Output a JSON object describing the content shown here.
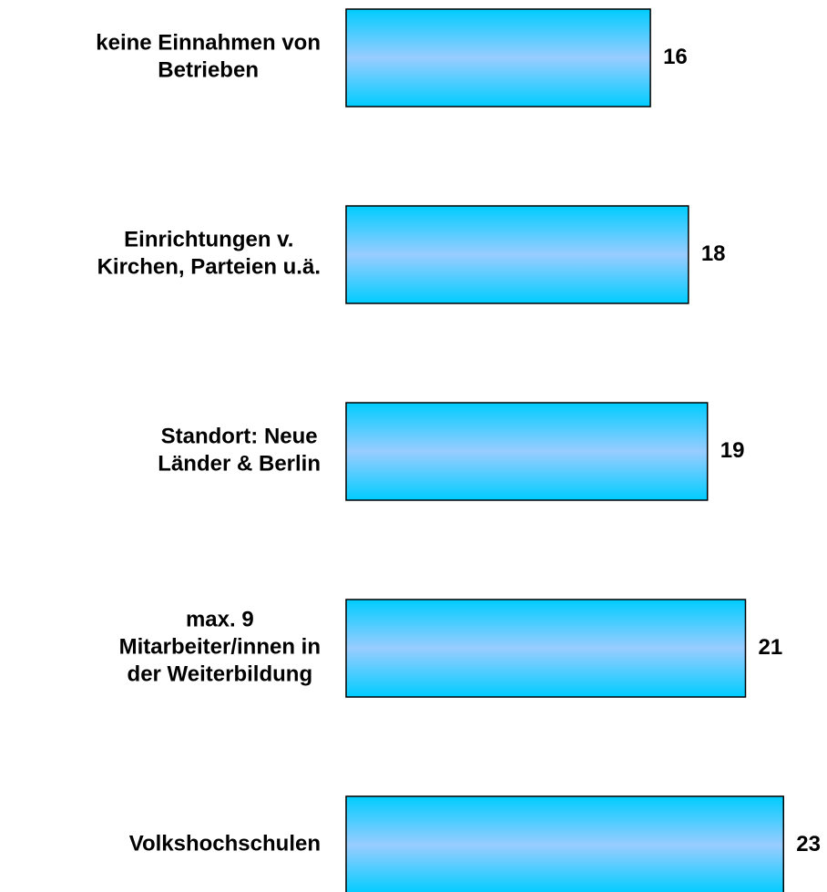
{
  "chart_data": {
    "type": "bar",
    "orientation": "horizontal",
    "categories": [
      "keine Einnahmen von\nBetrieben",
      "Einrichtungen v.\nKirchen, Parteien u.ä.",
      "Standort: Neue\nLänder & Berlin",
      "max. 9\nMitarbeiter/innen in\nder Weiterbildung",
      "Volkshochschulen"
    ],
    "values": [
      16,
      18,
      19,
      21,
      23
    ],
    "color": "#99ccff",
    "edge_color": "#00ccff",
    "xlim": [
      0,
      25
    ]
  }
}
